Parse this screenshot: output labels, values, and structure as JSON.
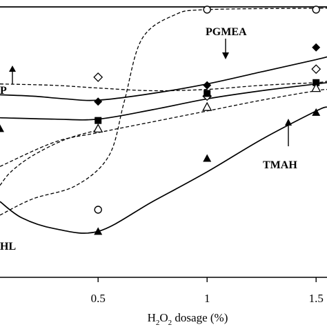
{
  "chart_data": {
    "type": "scatter",
    "xlabel": "H₂O₂ dosage (%)",
    "xlabel_parts": {
      "pre": "H",
      "sub1": "2",
      "mid": "O",
      "sub2": "2",
      "post": " dosage (%)"
    },
    "x_ticks": [
      0.5,
      1,
      1.5
    ],
    "x_tick_labels": [
      "0.5",
      "1",
      "1.5"
    ],
    "xlim": [
      0.05,
      1.55
    ],
    "ylim": [
      0,
      100
    ],
    "grid": false,
    "annotations": {
      "pgmea": "PGMEA",
      "tmah": "TMAH",
      "p_partial": "P",
      "hl_partial": "HL"
    },
    "series": [
      {
        "marker": "open-circle",
        "line": "dashed",
        "points": [
          [
            0.5,
            25.0
          ],
          [
            1.0,
            99.0
          ],
          [
            1.5,
            99.0
          ]
        ],
        "curve": [
          [
            0.05,
            23
          ],
          [
            0.2,
            29
          ],
          [
            0.4,
            34
          ],
          [
            0.55,
            45
          ],
          [
            0.62,
            65
          ],
          [
            0.7,
            88
          ],
          [
            0.85,
            97
          ],
          [
            1.0,
            99
          ],
          [
            1.5,
            99.5
          ],
          [
            1.55,
            99.5
          ]
        ]
      },
      {
        "marker": "flat-line",
        "line": "solid",
        "points": [],
        "curve": [
          [
            0.05,
            100
          ],
          [
            1.55,
            100
          ]
        ]
      },
      {
        "marker": "filled-diamond",
        "line": "solid",
        "points": [
          [
            0.5,
            65.0
          ],
          [
            1.0,
            71.0
          ],
          [
            1.5,
            85.0
          ]
        ],
        "curve": [
          [
            0.05,
            67.5
          ],
          [
            0.2,
            67
          ],
          [
            0.35,
            66
          ],
          [
            0.5,
            65.5
          ],
          [
            0.75,
            68
          ],
          [
            1.0,
            71.5
          ],
          [
            1.25,
            76
          ],
          [
            1.5,
            80.5
          ],
          [
            1.55,
            81.5
          ]
        ]
      },
      {
        "marker": "open-diamond",
        "line": "dashed",
        "points": [
          [
            0.5,
            74.0
          ],
          [
            1.0,
            67.0
          ],
          [
            1.5,
            77.0
          ]
        ],
        "curve": [
          [
            0.05,
            71.5
          ],
          [
            0.3,
            71
          ],
          [
            0.5,
            70
          ],
          [
            0.75,
            69
          ],
          [
            1.0,
            69.5
          ],
          [
            1.25,
            71
          ],
          [
            1.5,
            72
          ],
          [
            1.55,
            72.5
          ]
        ]
      },
      {
        "marker": "filled-square",
        "line": "solid",
        "points": [
          [
            0.5,
            58.0
          ],
          [
            1.0,
            68.0
          ],
          [
            1.5,
            72.0
          ]
        ],
        "curve": [
          [
            0.05,
            59
          ],
          [
            0.3,
            58.5
          ],
          [
            0.5,
            58.5
          ],
          [
            0.75,
            62
          ],
          [
            1.0,
            66
          ],
          [
            1.25,
            69
          ],
          [
            1.5,
            71.5
          ],
          [
            1.55,
            72
          ]
        ]
      },
      {
        "marker": "open-triangle",
        "line": "dashed",
        "points": [
          [
            0.5,
            55.0
          ],
          [
            1.0,
            63.0
          ],
          [
            1.5,
            70.0
          ]
        ],
        "curve": [
          [
            0.05,
            41
          ],
          [
            0.3,
            50
          ],
          [
            0.5,
            53.5
          ],
          [
            0.75,
            57.5
          ],
          [
            1.0,
            61.5
          ],
          [
            1.25,
            65.5
          ],
          [
            1.5,
            69
          ],
          [
            1.55,
            69.5
          ]
        ]
      },
      {
        "marker": "filled-triangle",
        "line": "solid",
        "points": [
          [
            0.05,
            55.0
          ],
          [
            0.5,
            17.0
          ],
          [
            1.0,
            44.0
          ],
          [
            1.5,
            61.0
          ]
        ],
        "curve": [
          [
            0.05,
            28
          ],
          [
            0.15,
            22
          ],
          [
            0.3,
            18
          ],
          [
            0.5,
            17
          ],
          [
            0.75,
            28
          ],
          [
            1.0,
            39
          ],
          [
            1.25,
            51
          ],
          [
            1.5,
            61.5
          ],
          [
            1.55,
            63
          ]
        ]
      },
      {
        "marker": "none",
        "line": "dashed",
        "points": [],
        "curve": [
          [
            0.05,
            34
          ],
          [
            0.1,
            39
          ],
          [
            0.2,
            45
          ],
          [
            0.35,
            51
          ],
          [
            0.5,
            54.5
          ]
        ]
      }
    ]
  }
}
